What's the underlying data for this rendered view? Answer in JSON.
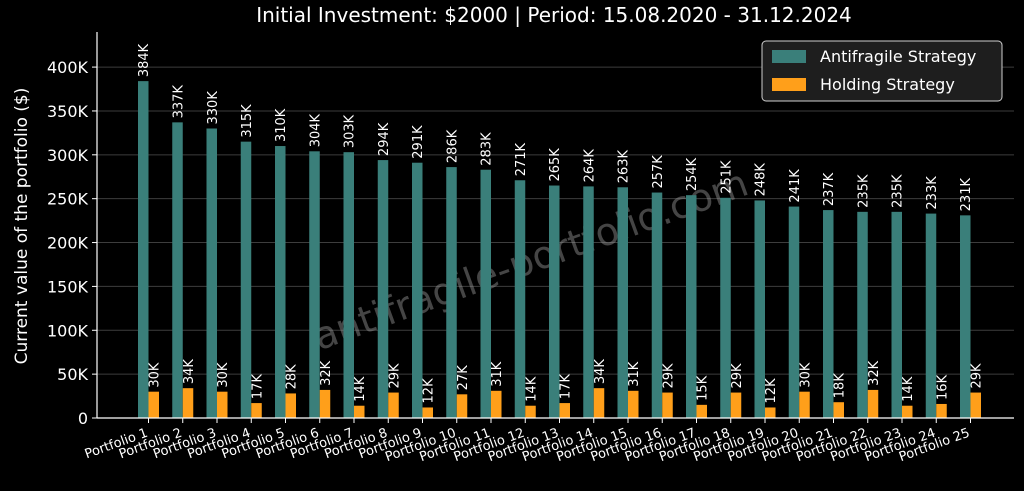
{
  "chart_data": {
    "type": "bar",
    "title": "Initial Investment: $2000 | Period: 15.08.2020 - 31.12.2024",
    "xlabel": "",
    "ylabel": "Current value of the portfolio ($)",
    "ylim": [
      0,
      440000
    ],
    "yticks": [
      0,
      50000,
      100000,
      150000,
      200000,
      250000,
      300000,
      350000,
      400000
    ],
    "ytick_labels": [
      "0",
      "50K",
      "100K",
      "150K",
      "200K",
      "250K",
      "300K",
      "350K",
      "400K"
    ],
    "grid": "horizontal",
    "legend_position": "top-right",
    "watermark": "antifragile-portfolio.com",
    "categories": [
      "Portfolio 1",
      "Portfolio 2",
      "Portfolio 3",
      "Portfolio 4",
      "Portfolio 5",
      "Portfolio 6",
      "Portfolio 7",
      "Portfolio 8",
      "Portfolio 9",
      "Portfolio 10",
      "Portfolio 11",
      "Portfolio 12",
      "Portfolio 13",
      "Portfolio 14",
      "Portfolio 15",
      "Portfolio 16",
      "Portfolio 17",
      "Portfolio 18",
      "Portfolio 19",
      "Portfolio 20",
      "Portfolio 21",
      "Portfolio 22",
      "Portfolio 23",
      "Portfolio 24",
      "Portfolio 25"
    ],
    "series": [
      {
        "name": "Antifragile Strategy",
        "color": "#3a7f7a",
        "values": [
          384000,
          337000,
          330000,
          315000,
          310000,
          304000,
          303000,
          294000,
          291000,
          286000,
          283000,
          271000,
          265000,
          264000,
          263000,
          257000,
          254000,
          251000,
          248000,
          241000,
          237000,
          235000,
          235000,
          233000,
          231000
        ],
        "labels": [
          "384K",
          "337K",
          "330K",
          "315K",
          "310K",
          "304K",
          "303K",
          "294K",
          "291K",
          "286K",
          "283K",
          "271K",
          "265K",
          "264K",
          "263K",
          "257K",
          "254K",
          "251K",
          "248K",
          "241K",
          "237K",
          "235K",
          "235K",
          "233K",
          "231K"
        ]
      },
      {
        "name": "Holding Strategy",
        "color": "#ff9f1a",
        "values": [
          30000,
          34000,
          30000,
          17000,
          28000,
          32000,
          14000,
          29000,
          12000,
          27000,
          31000,
          14000,
          17000,
          34000,
          31000,
          29000,
          15000,
          29000,
          12000,
          30000,
          18000,
          32000,
          14000,
          16000,
          29000
        ],
        "labels": [
          "30K",
          "34K",
          "30K",
          "17K",
          "28K",
          "32K",
          "14K",
          "29K",
          "12K",
          "27K",
          "31K",
          "14K",
          "17K",
          "34K",
          "31K",
          "29K",
          "15K",
          "29K",
          "12K",
          "30K",
          "18K",
          "32K",
          "14K",
          "16K",
          "29K"
        ]
      }
    ]
  }
}
